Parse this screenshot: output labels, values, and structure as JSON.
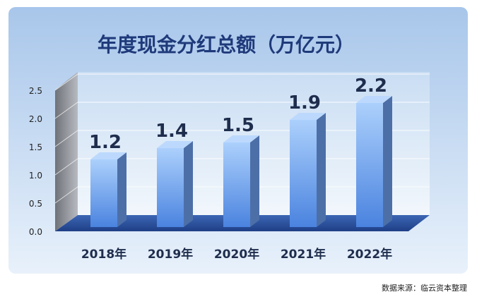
{
  "chart_data": {
    "type": "bar",
    "title": "年度现金分红总额（万亿元）",
    "categories": [
      "2018年",
      "2019年",
      "2020年",
      "2021年",
      "2022年"
    ],
    "values": [
      1.2,
      1.4,
      1.5,
      1.9,
      2.2
    ],
    "data_labels": [
      "1.2",
      "1.4",
      "1.5",
      "1.9",
      "2.2"
    ],
    "ylim": [
      0,
      2.5
    ],
    "yticks": [
      "0.0",
      "0.5",
      "1.0",
      "1.5",
      "2.0",
      "2.5"
    ],
    "grid": true,
    "legend": "none"
  },
  "footer": {
    "source": "数据来源：临云资本整理"
  },
  "colors": {
    "title": "#1f3a7a",
    "bar_front_top": "#a9cdfb",
    "bar_front_bottom": "#4a84e0",
    "bar_side": "#4d6fa8",
    "floor": "#2a4f9a",
    "back_wall": "#d9e8f7",
    "side_wall": "#8f9196",
    "label": "#1f2d4d"
  }
}
